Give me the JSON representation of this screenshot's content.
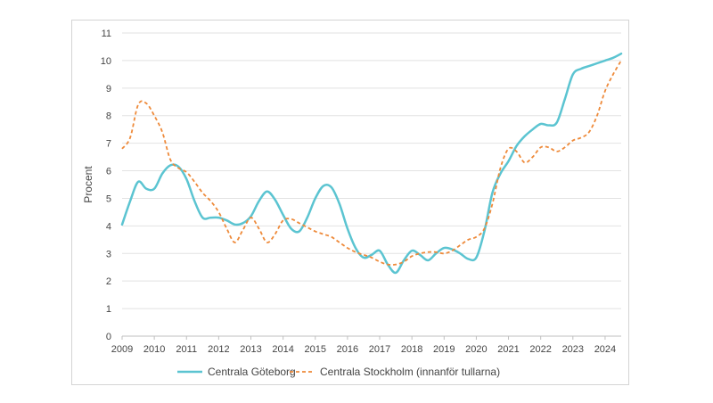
{
  "chart_data": {
    "type": "line",
    "title": "",
    "xlabel": "",
    "ylabel": "Procent",
    "xlim": [
      2009,
      2024.5
    ],
    "ylim": [
      0,
      11
    ],
    "y_ticks": [
      0,
      1,
      2,
      3,
      4,
      5,
      6,
      7,
      8,
      9,
      10,
      11
    ],
    "x_ticks": [
      2009,
      2010,
      2011,
      2012,
      2013,
      2014,
      2015,
      2016,
      2017,
      2018,
      2019,
      2020,
      2021,
      2022,
      2023,
      2024
    ],
    "grid": true,
    "legend_position": "bottom",
    "series": [
      {
        "name": "Centrala Göteborg",
        "color": "#5bc4d1",
        "style": "solid",
        "points": [
          [
            2009.0,
            4.05
          ],
          [
            2009.25,
            4.9
          ],
          [
            2009.5,
            5.6
          ],
          [
            2009.75,
            5.35
          ],
          [
            2010.0,
            5.35
          ],
          [
            2010.25,
            5.9
          ],
          [
            2010.5,
            6.2
          ],
          [
            2010.75,
            6.15
          ],
          [
            2011.0,
            5.7
          ],
          [
            2011.25,
            4.9
          ],
          [
            2011.5,
            4.3
          ],
          [
            2011.75,
            4.3
          ],
          [
            2012.0,
            4.3
          ],
          [
            2012.25,
            4.2
          ],
          [
            2012.5,
            4.05
          ],
          [
            2012.75,
            4.1
          ],
          [
            2013.0,
            4.35
          ],
          [
            2013.25,
            4.9
          ],
          [
            2013.5,
            5.25
          ],
          [
            2013.75,
            4.95
          ],
          [
            2014.0,
            4.4
          ],
          [
            2014.25,
            3.9
          ],
          [
            2014.5,
            3.8
          ],
          [
            2014.75,
            4.3
          ],
          [
            2015.0,
            5.0
          ],
          [
            2015.25,
            5.45
          ],
          [
            2015.5,
            5.4
          ],
          [
            2015.75,
            4.8
          ],
          [
            2016.0,
            3.9
          ],
          [
            2016.25,
            3.2
          ],
          [
            2016.5,
            2.85
          ],
          [
            2016.75,
            2.95
          ],
          [
            2017.0,
            3.1
          ],
          [
            2017.25,
            2.6
          ],
          [
            2017.5,
            2.3
          ],
          [
            2017.75,
            2.75
          ],
          [
            2018.0,
            3.1
          ],
          [
            2018.25,
            2.95
          ],
          [
            2018.5,
            2.75
          ],
          [
            2018.75,
            3.0
          ],
          [
            2019.0,
            3.2
          ],
          [
            2019.25,
            3.15
          ],
          [
            2019.5,
            3.0
          ],
          [
            2019.75,
            2.8
          ],
          [
            2020.0,
            2.85
          ],
          [
            2020.25,
            3.8
          ],
          [
            2020.5,
            5.2
          ],
          [
            2020.75,
            5.9
          ],
          [
            2021.0,
            6.35
          ],
          [
            2021.25,
            6.9
          ],
          [
            2021.5,
            7.25
          ],
          [
            2021.75,
            7.5
          ],
          [
            2022.0,
            7.7
          ],
          [
            2022.25,
            7.65
          ],
          [
            2022.5,
            7.75
          ],
          [
            2022.75,
            8.6
          ],
          [
            2023.0,
            9.5
          ],
          [
            2023.25,
            9.7
          ],
          [
            2023.5,
            9.8
          ],
          [
            2023.75,
            9.9
          ],
          [
            2024.0,
            10.0
          ],
          [
            2024.25,
            10.1
          ],
          [
            2024.5,
            10.25
          ]
        ]
      },
      {
        "name": "Centrala Stockholm (innanför tullarna)",
        "color": "#ee8a3a",
        "style": "dashed",
        "points": [
          [
            2009.0,
            6.8
          ],
          [
            2009.25,
            7.2
          ],
          [
            2009.5,
            8.4
          ],
          [
            2009.75,
            8.45
          ],
          [
            2010.0,
            8.0
          ],
          [
            2010.25,
            7.4
          ],
          [
            2010.5,
            6.4
          ],
          [
            2010.75,
            6.1
          ],
          [
            2011.0,
            5.95
          ],
          [
            2011.25,
            5.6
          ],
          [
            2011.5,
            5.2
          ],
          [
            2011.75,
            4.9
          ],
          [
            2012.0,
            4.5
          ],
          [
            2012.25,
            3.9
          ],
          [
            2012.5,
            3.4
          ],
          [
            2012.75,
            3.85
          ],
          [
            2013.0,
            4.3
          ],
          [
            2013.25,
            3.9
          ],
          [
            2013.5,
            3.4
          ],
          [
            2013.75,
            3.7
          ],
          [
            2014.0,
            4.2
          ],
          [
            2014.25,
            4.25
          ],
          [
            2014.5,
            4.1
          ],
          [
            2014.75,
            3.95
          ],
          [
            2015.0,
            3.8
          ],
          [
            2015.25,
            3.7
          ],
          [
            2015.5,
            3.6
          ],
          [
            2015.75,
            3.4
          ],
          [
            2016.0,
            3.2
          ],
          [
            2016.25,
            3.05
          ],
          [
            2016.5,
            2.95
          ],
          [
            2016.75,
            2.85
          ],
          [
            2017.0,
            2.7
          ],
          [
            2017.25,
            2.6
          ],
          [
            2017.5,
            2.6
          ],
          [
            2017.75,
            2.7
          ],
          [
            2018.0,
            2.9
          ],
          [
            2018.25,
            3.0
          ],
          [
            2018.5,
            3.05
          ],
          [
            2018.75,
            3.05
          ],
          [
            2019.0,
            3.0
          ],
          [
            2019.25,
            3.1
          ],
          [
            2019.5,
            3.3
          ],
          [
            2019.75,
            3.5
          ],
          [
            2020.0,
            3.6
          ],
          [
            2020.25,
            3.9
          ],
          [
            2020.5,
            4.8
          ],
          [
            2020.75,
            6.1
          ],
          [
            2021.0,
            6.8
          ],
          [
            2021.25,
            6.7
          ],
          [
            2021.5,
            6.3
          ],
          [
            2021.75,
            6.5
          ],
          [
            2022.0,
            6.85
          ],
          [
            2022.25,
            6.85
          ],
          [
            2022.5,
            6.7
          ],
          [
            2022.75,
            6.85
          ],
          [
            2023.0,
            7.1
          ],
          [
            2023.25,
            7.2
          ],
          [
            2023.5,
            7.4
          ],
          [
            2023.75,
            8.0
          ],
          [
            2024.0,
            8.9
          ],
          [
            2024.25,
            9.5
          ],
          [
            2024.5,
            10.0
          ]
        ]
      }
    ]
  }
}
